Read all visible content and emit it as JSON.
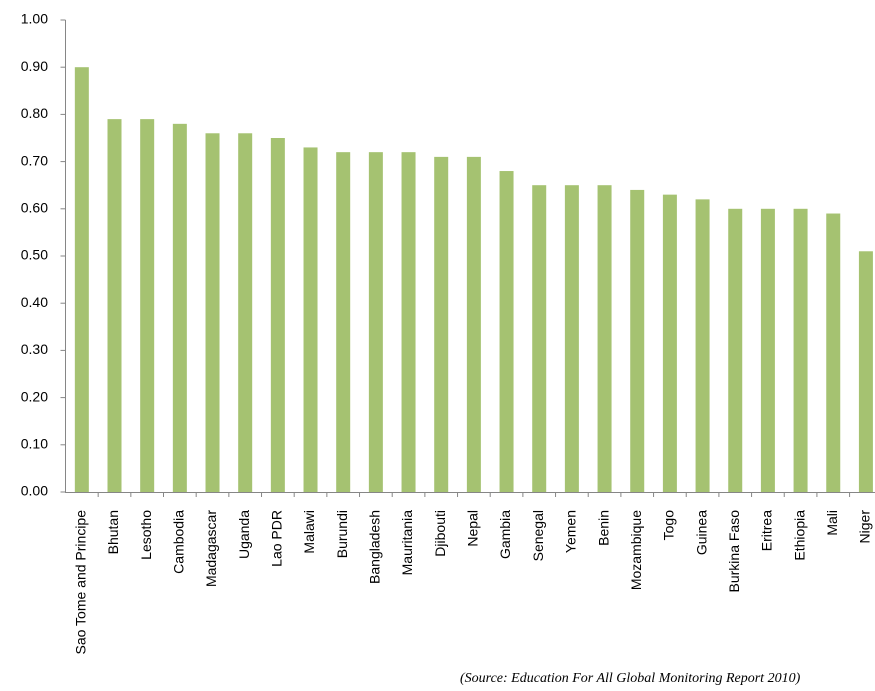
{
  "chart_data": {
    "type": "bar",
    "categories": [
      "Sao Tome and Principe",
      "Bhutan",
      "Lesotho",
      "Cambodia",
      "Madagascar",
      "Uganda",
      "Lao PDR",
      "Malawi",
      "Burundi",
      "Bangladesh",
      "Mauritania",
      "Djibouti",
      "Nepal",
      "Gambia",
      "Senegal",
      "Yemen",
      "Benin",
      "Mozambique",
      "Togo",
      "Guinea",
      "Burkina Faso",
      "Eritrea",
      "Ethiopia",
      "Mali",
      "Niger"
    ],
    "values": [
      0.9,
      0.79,
      0.79,
      0.78,
      0.76,
      0.76,
      0.75,
      0.73,
      0.72,
      0.72,
      0.72,
      0.71,
      0.71,
      0.68,
      0.65,
      0.65,
      0.65,
      0.64,
      0.63,
      0.62,
      0.6,
      0.6,
      0.6,
      0.59,
      0.51
    ],
    "color": "#a5c271",
    "ylim": [
      0,
      1
    ],
    "yticks": [
      {
        "value": 0,
        "label": "0.00"
      },
      {
        "value": 0.1,
        "label": "0.10"
      },
      {
        "value": 0.2,
        "label": "0.20"
      },
      {
        "value": 0.3,
        "label": "0.30"
      },
      {
        "value": 0.4,
        "label": "0.40"
      },
      {
        "value": 0.5,
        "label": "0.50"
      },
      {
        "value": 0.6,
        "label": "0.60"
      },
      {
        "value": 0.7,
        "label": "0.70"
      },
      {
        "value": 0.8,
        "label": "0.80"
      },
      {
        "value": 0.9,
        "label": "0.90"
      },
      {
        "value": 1,
        "label": "1.00"
      }
    ],
    "grid": false,
    "annotation": "(Source: Education For All Global Monitoring Report 2010)"
  }
}
